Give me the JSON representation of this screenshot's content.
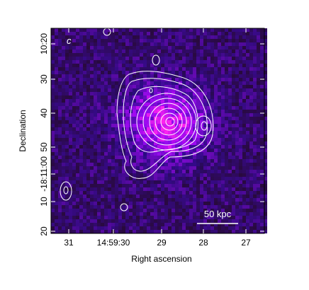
{
  "panel_label": "c",
  "x_axis": {
    "title": "Right ascension",
    "ticks": [
      "31",
      "14:59:30",
      "29",
      "28",
      "27"
    ]
  },
  "y_axis": {
    "title": "Declination",
    "ticks": [
      "10:20",
      "30",
      "40",
      "50",
      "-18:11:00",
      "10",
      "20"
    ]
  },
  "scale_bar": "50 kpc"
}
